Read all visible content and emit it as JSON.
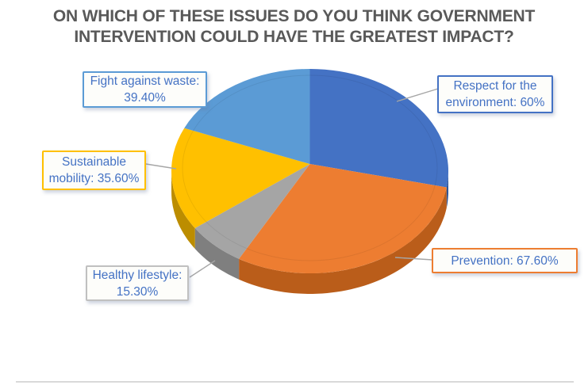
{
  "title": {
    "lines": [
      "ON WHICH OF THESE ISSUES DO YOU THINK GOVERNMENT",
      "INTERVENTION COULD HAVE THE GREATEST IMPACT?"
    ]
  },
  "chart_data": {
    "type": "pie",
    "style": "3d",
    "title": "ON WHICH OF THESE ISSUES DO YOU THINK GOVERNMENT INTERVENTION COULD HAVE THE GREATEST IMPACT?",
    "direction": "clockwise",
    "start_angle_deg": 0,
    "legend_position": "none",
    "labels_as_callouts": true,
    "note": "multi-response survey percentages; slice angles proportional to values (total 217.9)",
    "slices": [
      {
        "label": "Respect for the environment",
        "value": 60,
        "display": "60%",
        "color": "#4472C4",
        "side_color": "#2F5597"
      },
      {
        "label": "Prevention",
        "value": 67.6,
        "display": "67.60%",
        "color": "#ED7D31",
        "side_color": "#BA5D1A"
      },
      {
        "label": "Healthy lifestyle",
        "value": 15.3,
        "display": "15.30%",
        "color": "#A5A5A5",
        "side_color": "#7F7F7F"
      },
      {
        "label": "Sustainable mobility",
        "value": 35.6,
        "display": "35.60%",
        "color": "#FFC000",
        "side_color": "#BC8D00"
      },
      {
        "label": "Fight against waste",
        "value": 39.4,
        "display": "39.40%",
        "color": "#5B9BD5",
        "side_color": "#41719C"
      }
    ]
  },
  "callouts": {
    "fight_waste": {
      "line1": "Fight against waste:",
      "line2": "39.40%",
      "border": "#5B9BD5"
    },
    "respect_environment": {
      "line1": "Respect for the",
      "line2": "environment: 60%",
      "border": "#4472C4"
    },
    "sustainable_mobility": {
      "line1": "Sustainable",
      "line2": "mobility: 35.60%",
      "border": "#FFC000"
    },
    "healthy_lifestyle": {
      "line1": "Healthy lifestyle:",
      "line2": "15.30%",
      "border": "#C0C0C0"
    },
    "prevention": {
      "line1": "Prevention: 67.60%",
      "border": "#ED7D31"
    }
  },
  "colors": {
    "title_text": "#595959",
    "label_text": "#4472C4",
    "leader_line": "#A6A6A6",
    "footer_rule": "#D9D9D9",
    "background": "#FFFFFF"
  }
}
